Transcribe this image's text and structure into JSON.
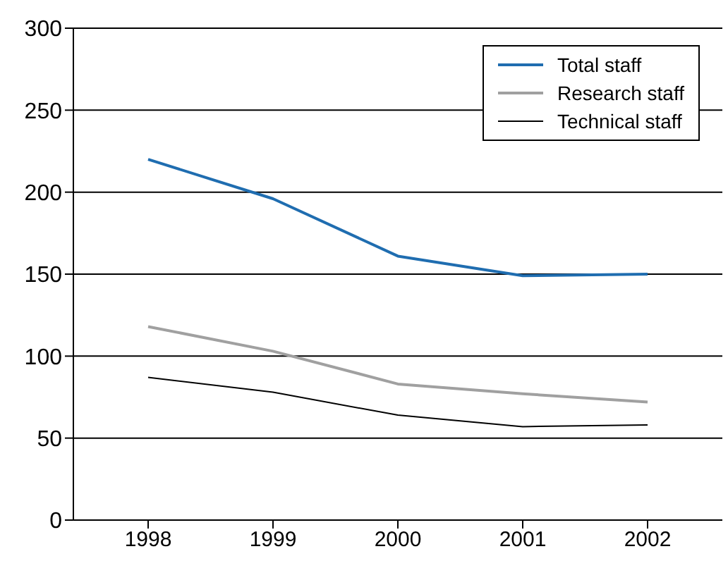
{
  "chart_data": {
    "type": "line",
    "categories": [
      "1998",
      "1999",
      "2000",
      "2001",
      "2002"
    ],
    "series": [
      {
        "name": "Total staff",
        "color": "#1f6db0",
        "values": [
          220,
          196,
          161,
          149,
          150
        ]
      },
      {
        "name": "Research staff",
        "color": "#a0a0a0",
        "values": [
          118,
          103,
          83,
          77,
          72
        ]
      },
      {
        "name": "Technical staff",
        "color": "#000000",
        "values": [
          87,
          78,
          64,
          57,
          58
        ]
      }
    ],
    "ylim": [
      0,
      300
    ],
    "yticks": [
      0,
      50,
      100,
      150,
      200,
      250,
      300
    ],
    "grid": "y",
    "legend": "top right",
    "marker": "none",
    "line_style": "solid"
  }
}
